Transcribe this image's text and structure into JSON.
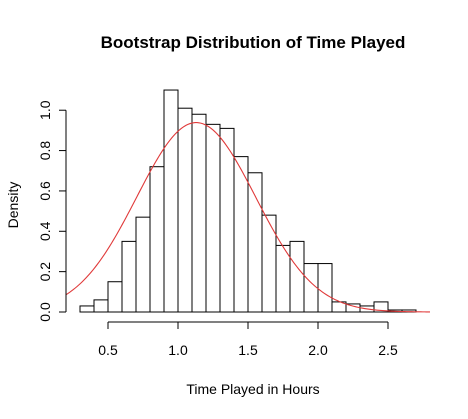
{
  "chart_data": {
    "type": "bar",
    "title": "Bootstrap Distribution of Time Played",
    "xlabel": "Time Played in Hours",
    "ylabel": "Density",
    "xlim": [
      0.2,
      2.8
    ],
    "ylim": [
      0,
      1.12
    ],
    "x_ticks": [
      0.5,
      1.0,
      1.5,
      2.0,
      2.5
    ],
    "x_tick_labels": [
      "0.5",
      "1.0",
      "1.5",
      "2.0",
      "2.5"
    ],
    "y_ticks": [
      0.0,
      0.2,
      0.4,
      0.6,
      0.8,
      1.0
    ],
    "y_tick_labels": [
      "0.0",
      "0.2",
      "0.4",
      "0.6",
      "0.8",
      "1.0"
    ],
    "bin_width": 0.1,
    "bin_starts": [
      0.3,
      0.4,
      0.5,
      0.6,
      0.7,
      0.8,
      0.9,
      1.0,
      1.1,
      1.2,
      1.3,
      1.4,
      1.5,
      1.6,
      1.7,
      1.8,
      1.9,
      2.0,
      2.1,
      2.2,
      2.3,
      2.4,
      2.5,
      2.6
    ],
    "values": [
      0.03,
      0.06,
      0.15,
      0.35,
      0.47,
      0.72,
      1.1,
      1.01,
      0.98,
      0.93,
      0.91,
      0.77,
      0.69,
      0.48,
      0.33,
      0.35,
      0.24,
      0.24,
      0.05,
      0.04,
      0.03,
      0.05,
      0.01,
      0.01
    ],
    "density_curve": {
      "type": "normal",
      "mean": 1.13,
      "sd": 0.425,
      "x_range": [
        0.2,
        2.8
      ],
      "color": "#e03a3a"
    },
    "grid": false,
    "bar_fill": "#ffffff",
    "bar_stroke": "#000000"
  }
}
